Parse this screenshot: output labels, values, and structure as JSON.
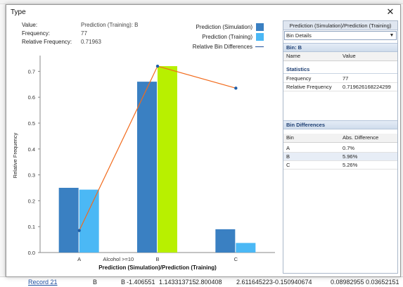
{
  "window": {
    "title": "Type",
    "close_glyph": "✕"
  },
  "background": {
    "bottom_row": {
      "label": "Record 21",
      "cells": [
        "B",
        "B",
        "-1.406551",
        "1.143313715",
        "2.800408",
        "2.611645223",
        "-0.150940674",
        "0.08982955",
        "0.03652151"
      ]
    }
  },
  "info": {
    "value_label": "Value:",
    "value": "Prediction (Training): B",
    "frequency_label": "Frequency:",
    "frequency": "77",
    "relfreq_label": "Relative Frequency:",
    "relfreq": "0.71963"
  },
  "legend": {
    "simulation": "Prediction (Simulation)",
    "training": "Prediction (Training)",
    "differences": "Relative Bin Differences"
  },
  "colors": {
    "simulation": "#3a80c2",
    "training": "#4bb8f5",
    "selected": "#b8f000",
    "diff_line": "#f26a1b",
    "diff_point": "#1f5fa8"
  },
  "chart_data": {
    "type": "bar",
    "categories": [
      "A",
      "B",
      "C"
    ],
    "series": [
      {
        "name": "Prediction (Simulation)",
        "values": [
          0.25,
          0.66,
          0.09
        ]
      },
      {
        "name": "Prediction (Training)",
        "values": [
          0.243,
          0.72,
          0.037
        ]
      }
    ],
    "selected": {
      "series": 1,
      "category": 1
    },
    "overlay_line": {
      "name": "Relative Bin Differences",
      "points": [
        {
          "category": "A",
          "value": 0.085
        },
        {
          "category": "B",
          "value": 0.72
        },
        {
          "category": "C",
          "value": 0.635
        }
      ]
    },
    "annotation": "Alcohol >=10",
    "title": "",
    "xlabel": "Prediction (Simulation)/Prediction (Training)",
    "ylabel": "Relative Frequency",
    "ylim": [
      0,
      0.75
    ],
    "yticks": [
      0.0,
      0.1,
      0.2,
      0.3,
      0.4,
      0.5,
      0.6,
      0.7
    ],
    "ytick_labels": [
      "0.0",
      "0.1",
      "0.2",
      "0.3",
      "0.4",
      "0.5",
      "0.6",
      "0.7"
    ],
    "grid": false
  },
  "side": {
    "header": "Prediction (Simulation)/Prediction (Training)",
    "dropdown_value": "Bin Details",
    "dropdown_arrow": "▼",
    "bin_section": "Bin: B",
    "name_col": "Name",
    "value_col": "Value",
    "statistics": "Statistics",
    "stats": [
      {
        "name": "Frequency",
        "value": "77"
      },
      {
        "name": "Relative Frequency",
        "value": "0.719626168224299"
      }
    ],
    "diff_section": "Bin Differences",
    "bin_col": "Bin",
    "absdiff_col": "Abs. Difference",
    "diffs": [
      {
        "bin": "A",
        "value": "0.7%"
      },
      {
        "bin": "B",
        "value": "5.96%"
      },
      {
        "bin": "C",
        "value": "5.26%"
      }
    ]
  }
}
